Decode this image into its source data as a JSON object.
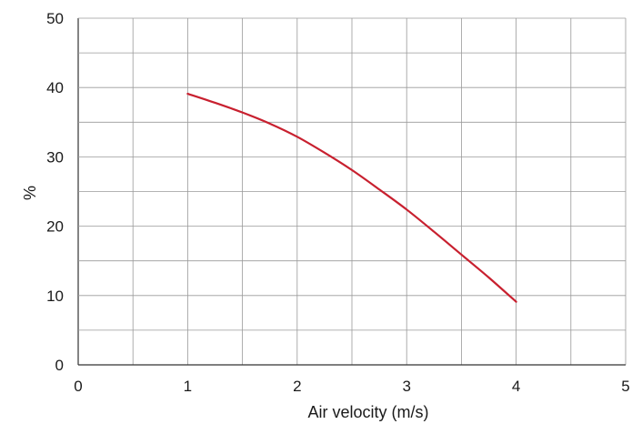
{
  "chart_data": {
    "type": "line",
    "title": "",
    "xlabel": "Air velocity (m/s)",
    "ylabel": "%",
    "xlim": [
      0,
      5
    ],
    "ylim": [
      0,
      50
    ],
    "x_ticks": [
      0,
      1,
      2,
      3,
      4,
      5
    ],
    "y_ticks": [
      0,
      10,
      20,
      30,
      40,
      50
    ],
    "x_tick_labels": [
      "0",
      "1",
      "2",
      "3",
      "4",
      "5"
    ],
    "y_tick_labels": [
      "0",
      "10",
      "20",
      "30",
      "40",
      "50"
    ],
    "minor_x_step": 0.5,
    "minor_y_step": 5,
    "grid": true,
    "legend": "none",
    "series": [
      {
        "color": "#c8202f",
        "x": [
          1.0,
          1.25,
          1.5,
          1.75,
          2.0,
          2.25,
          2.5,
          2.75,
          3.0,
          3.25,
          3.5,
          3.75,
          4.0
        ],
        "y": [
          39.1,
          37.8,
          36.4,
          34.8,
          32.9,
          30.6,
          28.1,
          25.3,
          22.4,
          19.2,
          15.9,
          12.6,
          9.1
        ]
      }
    ]
  },
  "colors": {
    "grid": "#9a9a9a",
    "axis": "#333333",
    "text": "#1a1a1a"
  }
}
